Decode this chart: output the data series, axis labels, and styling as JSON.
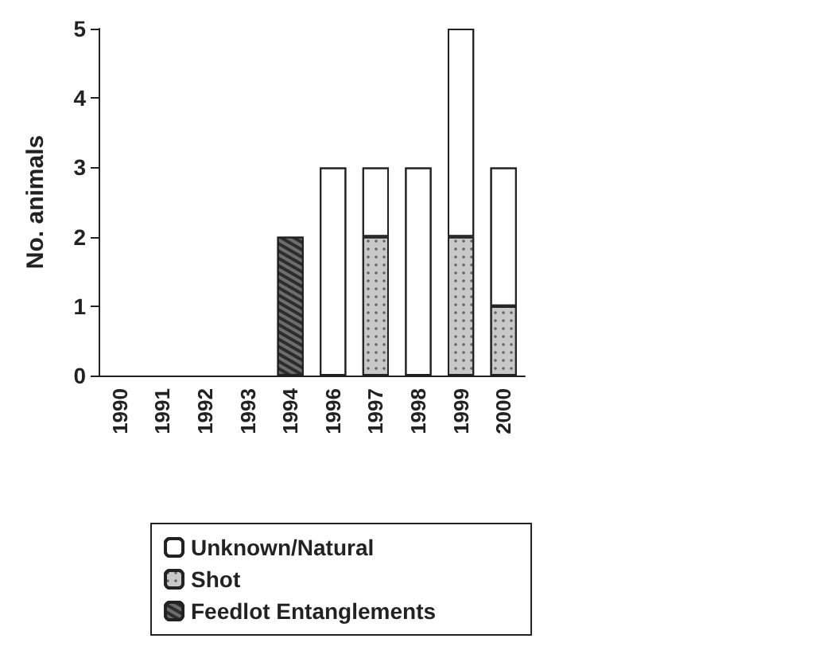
{
  "chart_data": {
    "type": "bar",
    "stacked": true,
    "ylabel": "No. animals",
    "categories": [
      "1990",
      "1991",
      "1992",
      "1993",
      "1994",
      "1996",
      "1997",
      "1998",
      "1999",
      "2000"
    ],
    "series": [
      {
        "name": "Feedlot Entanglements",
        "color": "#6e6e6e",
        "values": [
          0,
          0,
          0,
          0,
          2,
          0,
          0,
          0,
          0,
          0
        ]
      },
      {
        "name": "Shot",
        "color": "#c8c8c8",
        "values": [
          0,
          0,
          0,
          0,
          0,
          0,
          2,
          0,
          2,
          1
        ]
      },
      {
        "name": "Unknown/Natural",
        "color": "#ffffff",
        "values": [
          0,
          0,
          0,
          0,
          0,
          3,
          1,
          3,
          3,
          2
        ]
      }
    ],
    "ylim": [
      0,
      5
    ],
    "yticks": [
      0,
      1,
      2,
      3,
      4,
      5
    ],
    "grid": false,
    "legend": "bottom"
  }
}
